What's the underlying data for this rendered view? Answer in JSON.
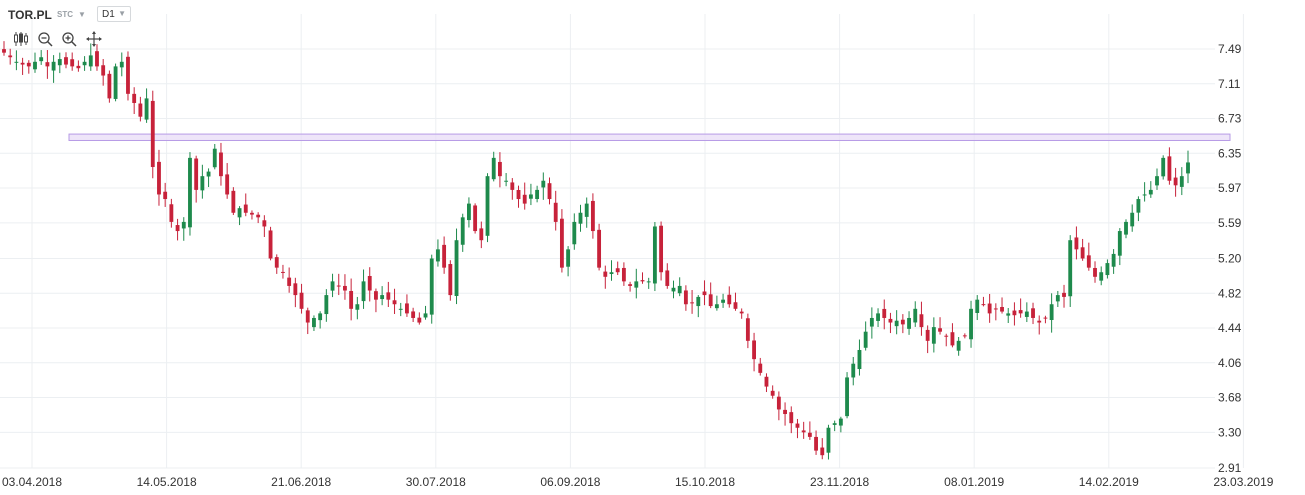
{
  "toolbar": {
    "symbol": "TOR.PL",
    "market": "STC",
    "interval": "D1",
    "tools": [
      "candles-icon",
      "zoom-out-icon",
      "zoom-in-icon",
      "move-icon"
    ]
  },
  "colors": {
    "up": "#1e8a4c",
    "down": "#c7223a",
    "grid": "#eceff2",
    "highlight_fill": "#e8dcf7",
    "highlight_stroke": "#b79be6"
  },
  "chart_data": {
    "type": "candlestick",
    "title": "",
    "xlabel": "",
    "ylabel": "",
    "ylim": [
      2.91,
      7.6
    ],
    "y_ticks": [
      "7.49",
      "7.11",
      "6.73",
      "6.35",
      "5.97",
      "5.59",
      "5.20",
      "4.82",
      "4.44",
      "4.06",
      "3.68",
      "3.30",
      "2.91"
    ],
    "x_ticks": [
      "03.04.2018",
      "14.05.2018",
      "21.06.2018",
      "30.07.2018",
      "06.09.2018",
      "15.10.2018",
      "23.11.2018",
      "08.01.2019",
      "14.02.2019",
      "23.03.2019"
    ],
    "grid": true,
    "resistance_zone": [
      6.49,
      6.56
    ],
    "closes": [
      7.45,
      7.4,
      7.35,
      7.32,
      7.3,
      7.35,
      7.4,
      7.3,
      7.35,
      7.38,
      7.32,
      7.3,
      7.28,
      7.35,
      7.42,
      7.3,
      7.2,
      6.95,
      7.3,
      7.35,
      7.0,
      6.9,
      6.75,
      6.95,
      6.2,
      5.9,
      5.85,
      5.6,
      5.5,
      5.6,
      6.3,
      5.95,
      6.1,
      6.15,
      6.4,
      6.1,
      5.9,
      5.7,
      5.75,
      5.7,
      5.68,
      5.65,
      5.55,
      5.2,
      5.1,
      5.05,
      4.9,
      4.8,
      4.65,
      4.5,
      4.55,
      4.6,
      4.8,
      4.95,
      4.9,
      4.85,
      4.65,
      4.7,
      4.95,
      4.85,
      4.75,
      4.8,
      4.75,
      4.7,
      4.65,
      4.6,
      4.55,
      4.5,
      4.6,
      5.2,
      5.3,
      5.1,
      4.8,
      5.4,
      5.65,
      5.8,
      5.5,
      5.4,
      6.1,
      6.3,
      6.1,
      6.05,
      5.95,
      5.85,
      5.8,
      5.9,
      5.95,
      6.05,
      5.85,
      5.6,
      5.1,
      5.3,
      5.6,
      5.7,
      5.8,
      5.5,
      5.1,
      5.0,
      5.05,
      5.05,
      4.95,
      4.9,
      4.95,
      4.95,
      4.95,
      5.55,
      5.05,
      4.9,
      4.88,
      4.9,
      4.7,
      4.72,
      4.78,
      4.8,
      4.68,
      4.7,
      4.75,
      4.7,
      4.65,
      4.6,
      4.3,
      4.1,
      3.95,
      3.8,
      3.7,
      3.55,
      3.5,
      3.4,
      3.35,
      3.3,
      3.25,
      3.1,
      3.05,
      3.35,
      3.4,
      3.45,
      3.9,
      4.05,
      4.2,
      4.4,
      4.55,
      4.6,
      4.55,
      4.5,
      4.52,
      4.48,
      4.55,
      4.65,
      4.45,
      4.3,
      4.45,
      4.4,
      4.35,
      4.25,
      4.3,
      4.35,
      4.65,
      4.75,
      4.7,
      4.6,
      4.65,
      4.62,
      4.6,
      4.58,
      4.6,
      4.62,
      4.55,
      4.5,
      4.55,
      4.7,
      4.8,
      4.78,
      5.4,
      5.3,
      5.2,
      5.1,
      5.0,
      5.05,
      5.15,
      5.25,
      5.5,
      5.6,
      5.7,
      5.85,
      5.9,
      5.95,
      6.1,
      6.3,
      6.05,
      6.0,
      6.1,
      6.25
    ]
  }
}
